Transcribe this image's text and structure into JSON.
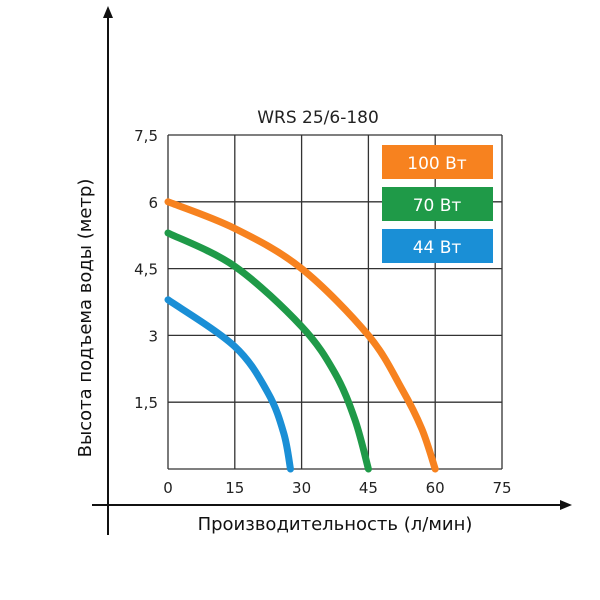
{
  "chart_data": {
    "type": "line",
    "title": "WRS 25/6-180",
    "xlabel": "Производительность (л/мин)",
    "ylabel": "Высота подъема воды (метр)",
    "xlim": [
      0,
      75
    ],
    "ylim": [
      0,
      7.5
    ],
    "xticks": [
      "0",
      "15",
      "30",
      "45",
      "60",
      "75"
    ],
    "yticks": [
      "1,5",
      "3",
      "4,5",
      "6",
      "7,5"
    ],
    "grid": true,
    "legend_position": "top-right",
    "series": [
      {
        "name": "100 Вт",
        "color": "#f7821f",
        "x": [
          0,
          15,
          30,
          45,
          52.5,
          57,
          60
        ],
        "y": [
          6.0,
          5.4,
          4.5,
          3.0,
          1.8,
          0.9,
          0
        ]
      },
      {
        "name": "70 Вт",
        "color": "#1f9a48",
        "x": [
          0,
          15,
          30,
          37.5,
          42,
          45
        ],
        "y": [
          5.3,
          4.55,
          3.2,
          2.15,
          1.1,
          0
        ]
      },
      {
        "name": "44 Вт",
        "color": "#1a8fd6",
        "x": [
          0,
          15,
          22.5,
          26,
          27.5
        ],
        "y": [
          3.8,
          2.75,
          1.7,
          0.8,
          0
        ]
      }
    ]
  }
}
